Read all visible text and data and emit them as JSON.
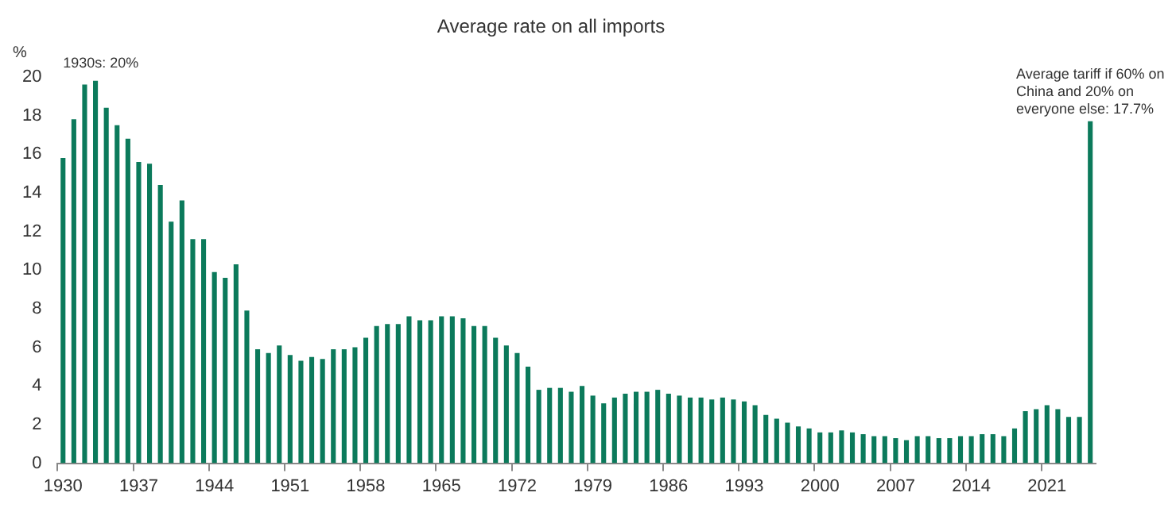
{
  "chart_data": {
    "type": "bar",
    "title": "Average rate on all imports",
    "ylabel": "%",
    "categories": [
      "1930",
      null,
      null,
      null,
      null,
      null,
      null,
      "1937",
      null,
      null,
      null,
      null,
      null,
      null,
      "1944",
      null,
      null,
      null,
      null,
      null,
      null,
      "1951",
      null,
      null,
      null,
      null,
      null,
      null,
      "1958",
      null,
      null,
      null,
      null,
      null,
      null,
      "1965",
      null,
      null,
      null,
      null,
      null,
      null,
      "1972",
      null,
      null,
      null,
      null,
      null,
      null,
      "1979",
      null,
      null,
      null,
      null,
      null,
      null,
      "1986",
      null,
      null,
      null,
      null,
      null,
      null,
      "1993",
      null,
      null,
      null,
      null,
      null,
      null,
      "2000",
      null,
      null,
      null,
      null,
      null,
      null,
      "2007",
      null,
      null,
      null,
      null,
      null,
      null,
      "2014",
      null,
      null,
      null,
      null,
      null,
      null,
      "2021",
      null,
      null,
      null,
      null
    ],
    "values": [
      15.8,
      17.8,
      19.6,
      19.8,
      18.4,
      17.5,
      16.8,
      15.6,
      15.5,
      14.4,
      12.5,
      13.6,
      11.6,
      11.6,
      9.9,
      9.6,
      10.3,
      7.9,
      5.9,
      5.7,
      6.1,
      5.6,
      5.3,
      5.5,
      5.4,
      5.9,
      5.9,
      6.0,
      6.5,
      7.1,
      7.2,
      7.2,
      7.6,
      7.4,
      7.4,
      7.6,
      7.6,
      7.5,
      7.1,
      7.1,
      6.5,
      6.1,
      5.7,
      5.0,
      3.8,
      3.9,
      3.9,
      3.7,
      4.0,
      3.5,
      3.1,
      3.4,
      3.6,
      3.7,
      3.7,
      3.8,
      3.6,
      3.5,
      3.4,
      3.4,
      3.3,
      3.4,
      3.3,
      3.2,
      3.0,
      2.5,
      2.3,
      2.1,
      1.9,
      1.8,
      1.6,
      1.6,
      1.7,
      1.6,
      1.5,
      1.4,
      1.4,
      1.3,
      1.2,
      1.4,
      1.4,
      1.3,
      1.3,
      1.4,
      1.4,
      1.5,
      1.5,
      1.4,
      1.8,
      2.7,
      2.8,
      3.0,
      2.8,
      2.4,
      2.4,
      17.7
    ],
    "value_labels": [
      null,
      null,
      null,
      null,
      null,
      null,
      null,
      null,
      null,
      null,
      null,
      null,
      null,
      null,
      null,
      null,
      null,
      null,
      null,
      null,
      null,
      null,
      null,
      null,
      null,
      null,
      null,
      null,
      null,
      null,
      null,
      null,
      null,
      null,
      null,
      null,
      null,
      null,
      null,
      null,
      null,
      null,
      null,
      null,
      null,
      null,
      null,
      null,
      null,
      null,
      null,
      null,
      null,
      null,
      null,
      null,
      null,
      null,
      null,
      null,
      null,
      null,
      null,
      null,
      null,
      null,
      null,
      null,
      null,
      null,
      null,
      null,
      null,
      null,
      null,
      null,
      null,
      null,
      null,
      null,
      null,
      null,
      null,
      null,
      null,
      null,
      null,
      null,
      null,
      null,
      null,
      null,
      null,
      null,
      null,
      "Average tariff if 60% on China and 20% on everyone else: 17.7%"
    ],
    "annotations": [
      "1930s: 20%"
    ],
    "color": "#0b7a5b",
    "ylim": [
      0,
      20
    ],
    "yticks": [
      0,
      2,
      4,
      6,
      8,
      10,
      12,
      14,
      16,
      18,
      20
    ],
    "grid": false,
    "legend": false
  }
}
